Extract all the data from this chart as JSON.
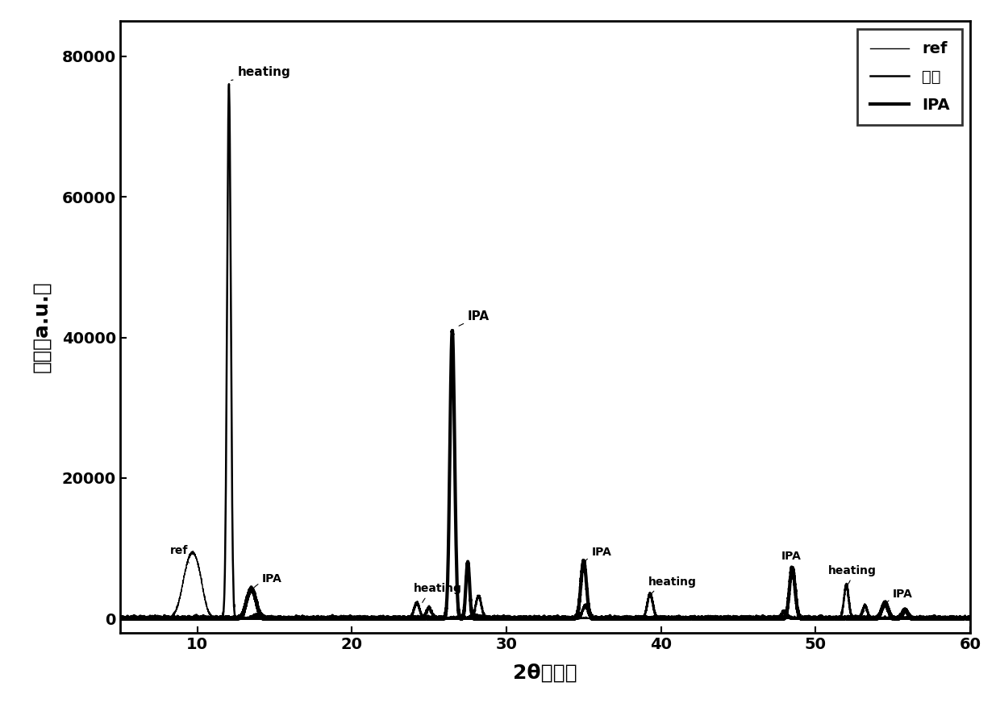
{
  "xlabel": "2θ（度）",
  "ylabel": "强度（a.u.）",
  "xlim": [
    5,
    60
  ],
  "ylim": [
    -2000,
    85000
  ],
  "yticks": [
    0,
    20000,
    40000,
    60000,
    80000
  ],
  "xticks": [
    10,
    20,
    30,
    40,
    50,
    60
  ],
  "legend_labels": [
    "ref",
    "加热",
    "IPA"
  ],
  "line_color": "#000000",
  "background_color": "#ffffff"
}
